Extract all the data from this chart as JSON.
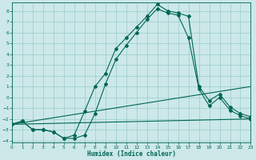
{
  "xlabel": "Humidex (Indice chaleur)",
  "bg_color": "#cce8e8",
  "grid_color": "#99cccc",
  "line_color": "#006655",
  "xlim": [
    0,
    23
  ],
  "ylim": [
    -4.2,
    8.8
  ],
  "x_ticks": [
    0,
    1,
    2,
    3,
    4,
    5,
    6,
    7,
    8,
    9,
    10,
    11,
    12,
    13,
    14,
    15,
    16,
    17,
    18,
    19,
    20,
    21,
    22,
    23
  ],
  "y_ticks": [
    -4,
    -3,
    -2,
    -1,
    0,
    1,
    2,
    3,
    4,
    5,
    6,
    7,
    8
  ],
  "curve1_x": [
    0,
    1,
    2,
    3,
    4,
    5,
    6,
    7,
    8,
    9,
    10,
    11,
    12,
    13,
    14,
    15,
    16,
    17,
    18,
    19,
    20,
    21,
    22,
    23
  ],
  "curve1_y": [
    -2.5,
    -2.2,
    -3.0,
    -3.0,
    -3.2,
    -3.8,
    -3.5,
    -1.3,
    1.0,
    2.2,
    4.5,
    5.5,
    6.5,
    7.5,
    8.6,
    8.0,
    7.8,
    7.5,
    1.0,
    -0.3,
    0.3,
    -0.9,
    -1.5,
    -1.8
  ],
  "curve2_x": [
    0,
    1,
    2,
    3,
    4,
    5,
    6,
    7,
    8,
    9,
    10,
    11,
    12,
    13,
    14,
    15,
    16,
    17,
    18,
    19,
    20,
    21,
    22,
    23
  ],
  "curve2_y": [
    -2.5,
    -2.2,
    -3.0,
    -3.0,
    -3.2,
    -3.8,
    -3.8,
    -3.5,
    -1.5,
    1.2,
    3.5,
    4.8,
    6.0,
    7.2,
    8.2,
    7.8,
    7.6,
    5.5,
    0.8,
    -0.8,
    0.0,
    -1.2,
    -1.7,
    -2.0
  ],
  "line1_x": [
    0,
    23
  ],
  "line1_y": [
    -2.5,
    1.0
  ],
  "line2_x": [
    0,
    23
  ],
  "line2_y": [
    -2.5,
    -2.0
  ]
}
